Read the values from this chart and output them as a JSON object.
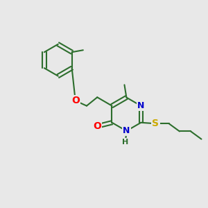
{
  "bg_color": "#e8e8e8",
  "bond_color": "#2d6e2d",
  "line_width": 1.5,
  "atom_colors": {
    "O": "#ff0000",
    "N": "#0000cc",
    "S": "#ccaa00",
    "H": "#2d6e2d",
    "C": "#2d6e2d"
  },
  "font_size": 9,
  "fig_size": [
    3.0,
    3.0
  ],
  "dpi": 100
}
